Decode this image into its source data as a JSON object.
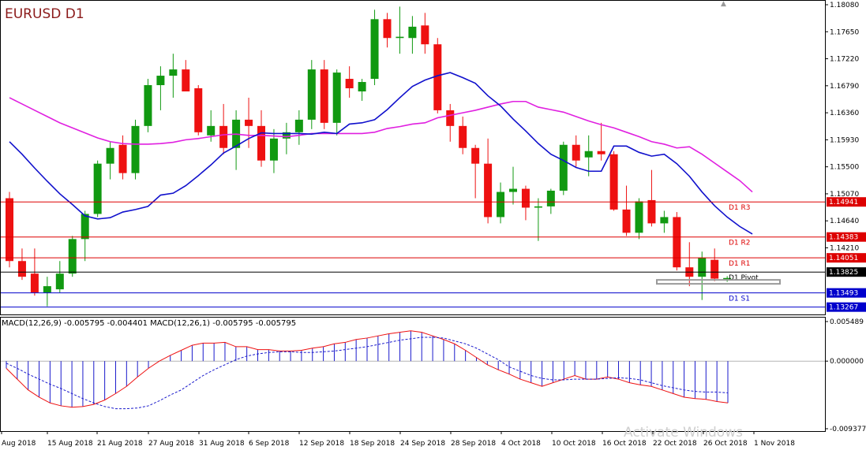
{
  "chart_data": {
    "type": "candlestick",
    "title": "EURUSD D1",
    "price_axis": {
      "ylim": [
        1.1315,
        1.1813
      ],
      "ticks": [
        "1.18080",
        "1.17650",
        "1.17220",
        "1.16790",
        "1.16360",
        "1.15930",
        "1.15500",
        "1.15070",
        "1.14640",
        "1.14210"
      ],
      "tick_values": [
        1.1808,
        1.1765,
        1.1722,
        1.1679,
        1.1636,
        1.1593,
        1.155,
        1.1507,
        1.1464,
        1.1421
      ]
    },
    "x_labels": [
      "Aug 2018",
      "15 Aug 2018",
      "21 Aug 2018",
      "27 Aug 2018",
      "31 Aug 2018",
      "6 Sep 2018",
      "12 Sep 2018",
      "18 Sep 2018",
      "24 Sep 2018",
      "28 Sep 2018",
      "4 Oct 2018",
      "10 Oct 2018",
      "16 Oct 2018",
      "22 Oct 2018",
      "26 Oct 2018",
      "1 Nov 2018"
    ],
    "candles": [
      {
        "o": 1.15,
        "h": 1.151,
        "l": 1.139,
        "c": 1.14
      },
      {
        "o": 1.14,
        "h": 1.142,
        "l": 1.137,
        "c": 1.1375
      },
      {
        "o": 1.138,
        "h": 1.142,
        "l": 1.1345,
        "c": 1.135
      },
      {
        "o": 1.135,
        "h": 1.1375,
        "l": 1.1328,
        "c": 1.136
      },
      {
        "o": 1.1355,
        "h": 1.14,
        "l": 1.135,
        "c": 1.138
      },
      {
        "o": 1.138,
        "h": 1.144,
        "l": 1.1375,
        "c": 1.1435
      },
      {
        "o": 1.1435,
        "h": 1.148,
        "l": 1.14,
        "c": 1.1475
      },
      {
        "o": 1.1475,
        "h": 1.156,
        "l": 1.147,
        "c": 1.1555
      },
      {
        "o": 1.1555,
        "h": 1.159,
        "l": 1.153,
        "c": 1.158
      },
      {
        "o": 1.1585,
        "h": 1.16,
        "l": 1.153,
        "c": 1.154
      },
      {
        "o": 1.154,
        "h": 1.1625,
        "l": 1.153,
        "c": 1.1615
      },
      {
        "o": 1.1615,
        "h": 1.169,
        "l": 1.1605,
        "c": 1.168
      },
      {
        "o": 1.168,
        "h": 1.171,
        "l": 1.164,
        "c": 1.1695
      },
      {
        "o": 1.1695,
        "h": 1.173,
        "l": 1.166,
        "c": 1.1705
      },
      {
        "o": 1.1705,
        "h": 1.172,
        "l": 1.167,
        "c": 1.167
      },
      {
        "o": 1.1675,
        "h": 1.168,
        "l": 1.16,
        "c": 1.1605
      },
      {
        "o": 1.16,
        "h": 1.164,
        "l": 1.159,
        "c": 1.1615
      },
      {
        "o": 1.1615,
        "h": 1.165,
        "l": 1.157,
        "c": 1.158
      },
      {
        "o": 1.158,
        "h": 1.164,
        "l": 1.1545,
        "c": 1.1625
      },
      {
        "o": 1.1625,
        "h": 1.166,
        "l": 1.158,
        "c": 1.1615
      },
      {
        "o": 1.1615,
        "h": 1.164,
        "l": 1.155,
        "c": 1.156
      },
      {
        "o": 1.156,
        "h": 1.161,
        "l": 1.154,
        "c": 1.1595
      },
      {
        "o": 1.1595,
        "h": 1.162,
        "l": 1.157,
        "c": 1.1605
      },
      {
        "o": 1.1605,
        "h": 1.164,
        "l": 1.1585,
        "c": 1.1625
      },
      {
        "o": 1.1625,
        "h": 1.172,
        "l": 1.161,
        "c": 1.1705
      },
      {
        "o": 1.1705,
        "h": 1.172,
        "l": 1.161,
        "c": 1.162
      },
      {
        "o": 1.162,
        "h": 1.1705,
        "l": 1.16,
        "c": 1.17
      },
      {
        "o": 1.169,
        "h": 1.171,
        "l": 1.166,
        "c": 1.1675
      },
      {
        "o": 1.167,
        "h": 1.169,
        "l": 1.1655,
        "c": 1.1685
      },
      {
        "o": 1.169,
        "h": 1.18,
        "l": 1.168,
        "c": 1.1785
      },
      {
        "o": 1.1785,
        "h": 1.1795,
        "l": 1.174,
        "c": 1.1755
      },
      {
        "o": 1.1755,
        "h": 1.1805,
        "l": 1.173,
        "c": 1.1757
      },
      {
        "o": 1.1755,
        "h": 1.179,
        "l": 1.173,
        "c": 1.1773
      },
      {
        "o": 1.1775,
        "h": 1.1795,
        "l": 1.173,
        "c": 1.1745
      },
      {
        "o": 1.1745,
        "h": 1.1755,
        "l": 1.1635,
        "c": 1.164
      },
      {
        "o": 1.164,
        "h": 1.165,
        "l": 1.159,
        "c": 1.1615
      },
      {
        "o": 1.1615,
        "h": 1.163,
        "l": 1.157,
        "c": 1.158
      },
      {
        "o": 1.158,
        "h": 1.1585,
        "l": 1.15,
        "c": 1.1555
      },
      {
        "o": 1.1555,
        "h": 1.1595,
        "l": 1.146,
        "c": 1.147
      },
      {
        "o": 1.147,
        "h": 1.1525,
        "l": 1.146,
        "c": 1.151
      },
      {
        "o": 1.151,
        "h": 1.155,
        "l": 1.149,
        "c": 1.1515
      },
      {
        "o": 1.1515,
        "h": 1.152,
        "l": 1.1465,
        "c": 1.1485
      },
      {
        "o": 1.1485,
        "h": 1.15,
        "l": 1.1432,
        "c": 1.1487
      },
      {
        "o": 1.1487,
        "h": 1.1515,
        "l": 1.1475,
        "c": 1.1512
      },
      {
        "o": 1.1512,
        "h": 1.159,
        "l": 1.1505,
        "c": 1.1585
      },
      {
        "o": 1.1585,
        "h": 1.16,
        "l": 1.155,
        "c": 1.156
      },
      {
        "o": 1.1565,
        "h": 1.16,
        "l": 1.1535,
        "c": 1.1575
      },
      {
        "o": 1.1575,
        "h": 1.162,
        "l": 1.156,
        "c": 1.157
      },
      {
        "o": 1.157,
        "h": 1.1575,
        "l": 1.148,
        "c": 1.1482
      },
      {
        "o": 1.1482,
        "h": 1.152,
        "l": 1.144,
        "c": 1.1445
      },
      {
        "o": 1.1445,
        "h": 1.15,
        "l": 1.1435,
        "c": 1.1495
      },
      {
        "o": 1.1497,
        "h": 1.1545,
        "l": 1.1455,
        "c": 1.146
      },
      {
        "o": 1.146,
        "h": 1.148,
        "l": 1.1445,
        "c": 1.147
      },
      {
        "o": 1.147,
        "h": 1.1478,
        "l": 1.1385,
        "c": 1.139
      },
      {
        "o": 1.139,
        "h": 1.143,
        "l": 1.136,
        "c": 1.1375
      },
      {
        "o": 1.1375,
        "h": 1.1415,
        "l": 1.1338,
        "c": 1.1405
      },
      {
        "o": 1.1402,
        "h": 1.142,
        "l": 1.1368,
        "c": 1.1372
      },
      {
        "o": 1.1371,
        "h": 1.1376,
        "l": 1.1367,
        "c": 1.1373
      }
    ],
    "ma_blue": [
      1.159,
      1.157,
      1.1548,
      1.1527,
      1.1507,
      1.149,
      1.1472,
      1.1467,
      1.1469,
      1.1478,
      1.1482,
      1.1487,
      1.1505,
      1.1508,
      1.152,
      1.1536,
      1.1553,
      1.1572,
      1.1583,
      1.1595,
      1.1604,
      1.1603,
      1.1603,
      1.1603,
      1.1602,
      1.1605,
      1.1603,
      1.1618,
      1.162,
      1.1625,
      1.1641,
      1.166,
      1.1678,
      1.1688,
      1.1695,
      1.17,
      1.1692,
      1.1683,
      1.1663,
      1.1647,
      1.1626,
      1.1607,
      1.1587,
      1.157,
      1.156,
      1.1549,
      1.1543,
      1.1543,
      1.1583,
      1.1583,
      1.1573,
      1.1567,
      1.157,
      1.1555,
      1.1535,
      1.151,
      1.1488,
      1.147,
      1.1455,
      1.1443
    ],
    "ma_magenta": [
      1.166,
      1.165,
      1.164,
      1.163,
      1.162,
      1.1612,
      1.1604,
      1.1596,
      1.159,
      1.1587,
      1.1586,
      1.1586,
      1.1587,
      1.1589,
      1.1593,
      1.1595,
      1.1598,
      1.1601,
      1.1602,
      1.16,
      1.16,
      1.1599,
      1.1598,
      1.16,
      1.1603,
      1.1603,
      1.1603,
      1.1603,
      1.1603,
      1.1605,
      1.1611,
      1.1614,
      1.1618,
      1.162,
      1.1628,
      1.1632,
      1.1636,
      1.164,
      1.1645,
      1.165,
      1.1654,
      1.1654,
      1.1645,
      1.1641,
      1.1637,
      1.163,
      1.1623,
      1.1617,
      1.1612,
      1.1605,
      1.1598,
      1.159,
      1.1586,
      1.158,
      1.1582,
      1.157,
      1.1556,
      1.1542,
      1.1528,
      1.151
    ],
    "levels": [
      {
        "name": "D1 R3",
        "value": 1.14941,
        "label": "1.14941",
        "color": "#dd0000"
      },
      {
        "name": "D1 R2",
        "value": 1.14383,
        "label": "1.14383",
        "color": "#dd0000"
      },
      {
        "name": "D1 R1",
        "value": 1.14051,
        "label": "1.14051",
        "color": "#dd0000"
      },
      {
        "name": "D1 Pivot",
        "value": 1.13825,
        "label": "1.13825",
        "color": "#000000"
      },
      {
        "name": "D1 S1",
        "value": 1.13493,
        "label": "1.13493",
        "color": "#0000cc"
      },
      {
        "name": "",
        "value": 1.13267,
        "label": "1.13267",
        "color": "#0000cc"
      }
    ],
    "macd": {
      "label": "MACD(12,26,9) -0.005795 -0.004401 MACD(12,26,1) -0.005795 -0.005795",
      "ylim": [
        -0.009377,
        0.005489
      ],
      "ticks": [
        "0.005489",
        "0.000000",
        "-0.009377"
      ],
      "tick_values": [
        0.005489,
        0.0,
        -0.009377
      ],
      "histogram": [
        -0.001,
        -0.0025,
        -0.004,
        -0.005,
        -0.0058,
        -0.0062,
        -0.0064,
        -0.0063,
        -0.006,
        -0.0054,
        -0.0045,
        -0.0035,
        -0.0022,
        -0.001,
        0.0,
        0.0008,
        0.0015,
        0.0022,
        0.0025,
        0.0025,
        0.0026,
        0.002,
        0.002,
        0.0016,
        0.0016,
        0.0014,
        0.0014,
        0.0015,
        0.0018,
        0.002,
        0.0024,
        0.0026,
        0.003,
        0.0032,
        0.0035,
        0.0038,
        0.004,
        0.0042,
        0.004,
        0.0035,
        0.003,
        0.0024,
        0.0015,
        0.0005,
        -0.0005,
        -0.0012,
        -0.0018,
        -0.0025,
        -0.003,
        -0.0035,
        -0.003,
        -0.0025,
        -0.002,
        -0.0025,
        -0.0025,
        -0.0022,
        -0.0025,
        -0.003,
        -0.0033,
        -0.0035,
        -0.004,
        -0.0045,
        -0.005,
        -0.0052,
        -0.0053,
        -0.0056,
        -0.0058
      ],
      "signal": [
        -0.0003,
        -0.001,
        -0.0018,
        -0.0025,
        -0.0032,
        -0.0038,
        -0.0045,
        -0.0052,
        -0.0058,
        -0.0063,
        -0.0066,
        -0.0066,
        -0.0065,
        -0.0062,
        -0.0055,
        -0.0047,
        -0.004,
        -0.003,
        -0.002,
        -0.0012,
        -0.0005,
        0.0002,
        0.0007,
        0.001,
        0.0012,
        0.0013,
        0.0013,
        0.0012,
        0.0012,
        0.0013,
        0.0014,
        0.0016,
        0.0018,
        0.002,
        0.0023,
        0.0026,
        0.0029,
        0.0031,
        0.0033,
        0.0033,
        0.0032,
        0.0028,
        0.0024,
        0.0018,
        0.001,
        0.0002,
        -0.0008,
        -0.0014,
        -0.002,
        -0.0024,
        -0.0026,
        -0.0026,
        -0.0025,
        -0.0025,
        -0.0025,
        -0.0024,
        -0.0023,
        -0.0024,
        -0.0026,
        -0.003,
        -0.0034,
        -0.0037,
        -0.004,
        -0.0042,
        -0.0043,
        -0.0043,
        -0.0044
      ]
    }
  },
  "watermark": "Activate Windows"
}
